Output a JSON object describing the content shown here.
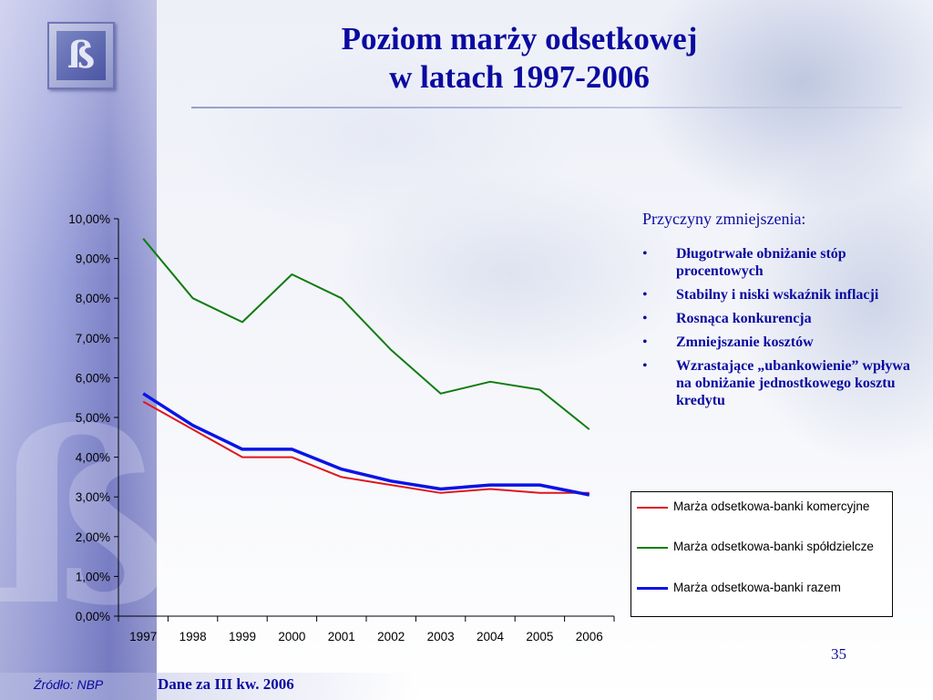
{
  "slide": {
    "title_line1": "Poziom marży odsetkowej",
    "title_line2": "w latach 1997-2006",
    "page_number": "35",
    "source_label": "Źródło: NBP",
    "source_note": "Dane za III kw. 2006",
    "logo_glyph": "ß"
  },
  "reasons": {
    "heading": "Przyczyny zmniejszenia:",
    "bullet": "•",
    "items": [
      "Długotrwałe obniżanie stóp procentowych",
      "Stabilny i niski wskaźnik inflacji",
      "Rosnąca konkurencja",
      "Zmniejszanie kosztów",
      "Wzrastające „ubankowienie” wpływa na obniżanie jednostkowego kosztu kredytu"
    ]
  },
  "colors": {
    "title": "#0a0aa0",
    "series_commercial": "#e0161e",
    "series_cooperative": "#0f7d10",
    "series_total": "#0a14e6"
  },
  "chart_data": {
    "type": "line",
    "title": "",
    "xlabel": "",
    "ylabel": "",
    "x": [
      "1997",
      "1998",
      "1999",
      "2000",
      "2001",
      "2002",
      "2003",
      "2004",
      "2005",
      "2006"
    ],
    "ylim": [
      0,
      10
    ],
    "y_ticks": [
      "0,00%",
      "1,00%",
      "2,00%",
      "3,00%",
      "4,00%",
      "5,00%",
      "6,00%",
      "7,00%",
      "8,00%",
      "9,00%",
      "10,00%"
    ],
    "grid": false,
    "legend_position": "right",
    "series": [
      {
        "name": "Marża odsetkowa-banki komercyjne",
        "color": "#e0161e",
        "width": 2,
        "values": [
          5.4,
          4.7,
          4.0,
          4.0,
          3.5,
          3.3,
          3.1,
          3.2,
          3.1,
          3.1
        ]
      },
      {
        "name": "Marża odsetkowa-banki spółdzielcze",
        "color": "#0f7d10",
        "width": 2,
        "values": [
          9.5,
          8.0,
          7.4,
          8.6,
          8.0,
          6.7,
          5.6,
          5.9,
          5.7,
          4.7
        ]
      },
      {
        "name": "Marża odsetkowa-banki razem",
        "color": "#0a14e6",
        "width": 3.5,
        "values": [
          5.6,
          4.8,
          4.2,
          4.2,
          3.7,
          3.4,
          3.2,
          3.3,
          3.3,
          3.05
        ]
      }
    ]
  }
}
